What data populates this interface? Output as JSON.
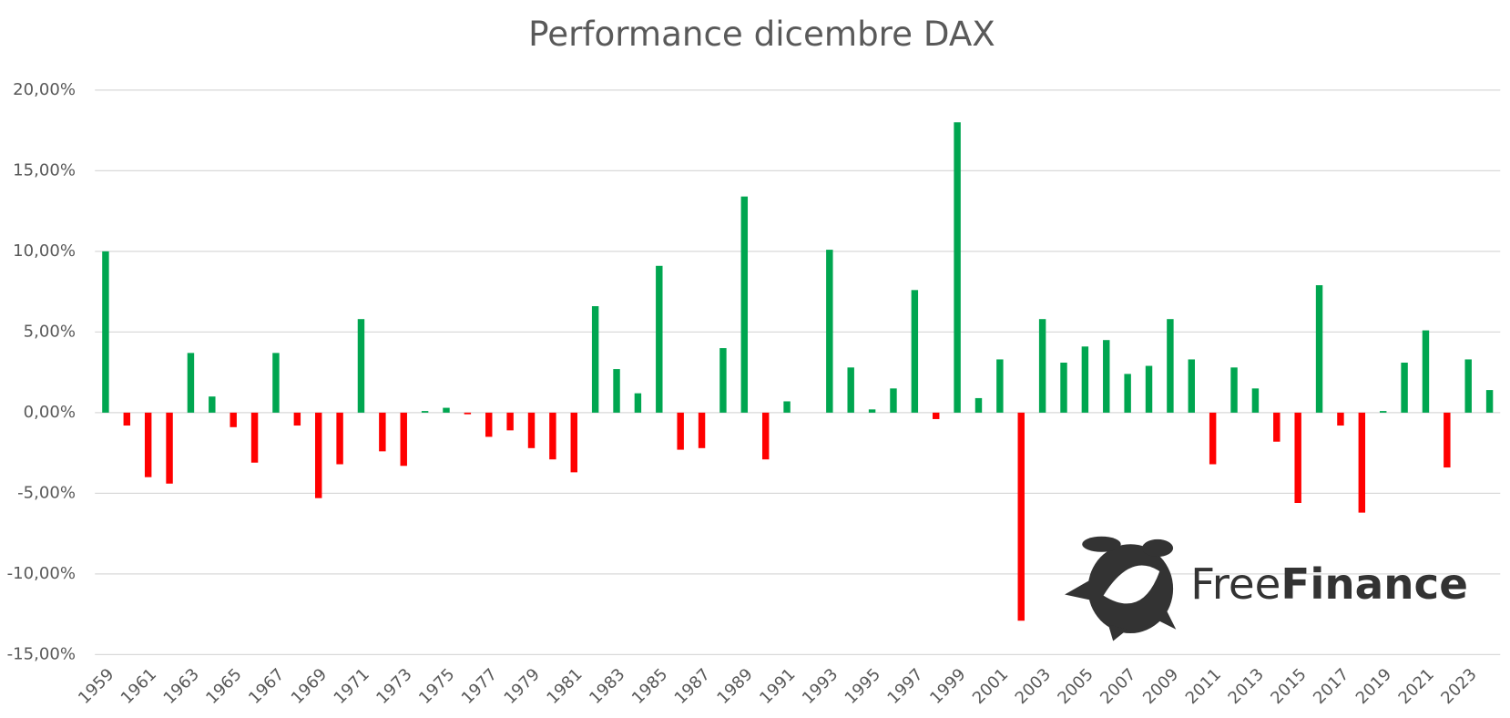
{
  "chart_data": {
    "type": "bar",
    "title": "Performance dicembre DAX",
    "categories": [
      "1959",
      null,
      "1961",
      null,
      "1963",
      null,
      "1965",
      null,
      "1967",
      null,
      "1969",
      null,
      "1971",
      null,
      "1973",
      null,
      "1975",
      null,
      "1977",
      null,
      "1979",
      null,
      "1981",
      null,
      "1983",
      null,
      "1985",
      null,
      "1987",
      null,
      "1989",
      null,
      "1991",
      null,
      "1993",
      null,
      "1995",
      null,
      "1997",
      null,
      "1999",
      null,
      "2001",
      null,
      "2003",
      null,
      "2005",
      null,
      "2007",
      null,
      "2009",
      null,
      "2011",
      null,
      "2013",
      null,
      "2015",
      null,
      "2017",
      null,
      "2019",
      null,
      "2021",
      null,
      "2023",
      null
    ],
    "values": [
      10.0,
      -0.8,
      -4.0,
      -4.4,
      3.7,
      1.0,
      -0.9,
      -3.1,
      3.7,
      -0.8,
      -5.3,
      -3.2,
      5.8,
      -2.4,
      -3.3,
      0.1,
      0.3,
      -0.1,
      -1.5,
      -1.1,
      -2.2,
      -2.9,
      -3.7,
      6.6,
      2.7,
      1.2,
      9.1,
      -2.3,
      -2.2,
      4.0,
      13.4,
      -2.9,
      0.7,
      0.0,
      10.1,
      2.8,
      0.2,
      1.5,
      7.6,
      -0.4,
      18.0,
      0.9,
      3.3,
      -12.9,
      5.8,
      3.1,
      4.1,
      4.5,
      2.4,
      2.9,
      5.8,
      3.3,
      -3.2,
      2.8,
      1.5,
      -1.8,
      -5.6,
      7.9,
      -0.8,
      -6.2,
      0.1,
      3.1,
      5.1,
      -3.4,
      3.3,
      1.4
    ],
    "positive_color": "#00a650",
    "negative_color": "#ff0000",
    "ylim": [
      -15,
      20
    ],
    "yticks": [
      {
        "value": -15,
        "label": "-15,00%"
      },
      {
        "value": -10,
        "label": "-10,00%"
      },
      {
        "value": -5,
        "label": "-5,00%"
      },
      {
        "value": 0,
        "label": "0,00%"
      },
      {
        "value": 5,
        "label": "5,00%"
      },
      {
        "value": 10,
        "label": "10,00%"
      },
      {
        "value": 15,
        "label": "15,00%"
      },
      {
        "value": 20,
        "label": "20,00%"
      }
    ],
    "grid": true
  },
  "logo": {
    "light": "Free",
    "bold": "Finance"
  }
}
